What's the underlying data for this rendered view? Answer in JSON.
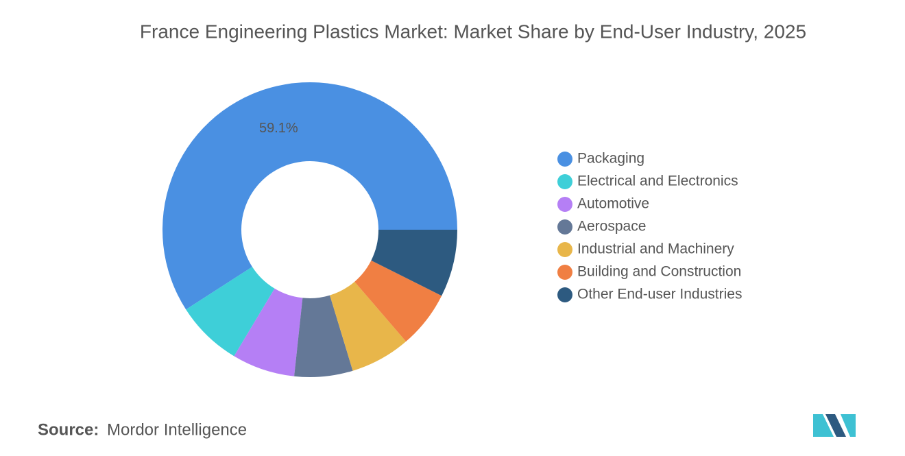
{
  "chart_data": {
    "type": "donut",
    "title": "France Engineering Plastics Market: Market Share by End-User Industry, 2025",
    "categories": [
      "Packaging",
      "Electrical and Electronics",
      "Automotive",
      "Aerospace",
      "Industrial and Machinery",
      "Building and Construction",
      "Other End-user Industries"
    ],
    "values": [
      59.1,
      7.3,
      6.9,
      6.4,
      6.6,
      6.3,
      7.4
    ],
    "value_labels": [
      "59.1%",
      null,
      null,
      null,
      null,
      null,
      null
    ],
    "colors": [
      "#4a90e2",
      "#3ecfd8",
      "#b57ff5",
      "#647897",
      "#e8b64a",
      "#f07f43",
      "#2d5a80"
    ],
    "legend": "right"
  },
  "source": {
    "label": "Source:",
    "text": "Mordor Intelligence"
  }
}
